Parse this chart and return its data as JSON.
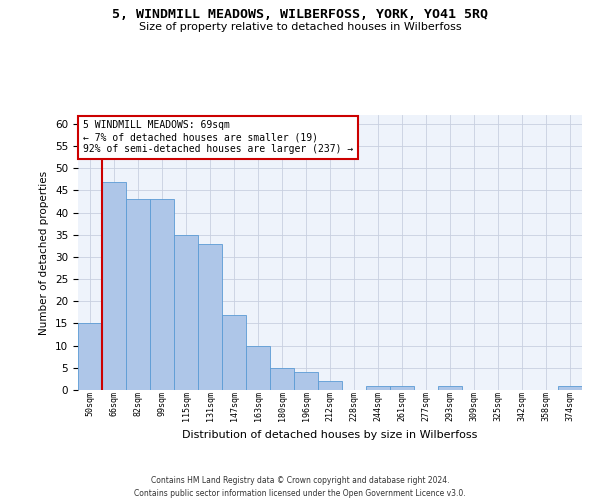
{
  "title": "5, WINDMILL MEADOWS, WILBERFOSS, YORK, YO41 5RQ",
  "subtitle": "Size of property relative to detached houses in Wilberfoss",
  "xlabel": "Distribution of detached houses by size in Wilberfoss",
  "ylabel": "Number of detached properties",
  "bar_labels": [
    "50sqm",
    "66sqm",
    "82sqm",
    "99sqm",
    "115sqm",
    "131sqm",
    "147sqm",
    "163sqm",
    "180sqm",
    "196sqm",
    "212sqm",
    "228sqm",
    "244sqm",
    "261sqm",
    "277sqm",
    "293sqm",
    "309sqm",
    "325sqm",
    "342sqm",
    "358sqm",
    "374sqm"
  ],
  "bar_values": [
    15,
    47,
    43,
    43,
    35,
    33,
    17,
    10,
    5,
    4,
    2,
    0,
    1,
    1,
    0,
    1,
    0,
    0,
    0,
    0,
    1
  ],
  "bar_color": "#aec6e8",
  "bar_edge_color": "#5b9bd5",
  "highlight_bar_index": 1,
  "highlight_color": "#cc0000",
  "ylim": [
    0,
    62
  ],
  "yticks": [
    0,
    5,
    10,
    15,
    20,
    25,
    30,
    35,
    40,
    45,
    50,
    55,
    60
  ],
  "annotation_text": "5 WINDMILL MEADOWS: 69sqm\n← 7% of detached houses are smaller (19)\n92% of semi-detached houses are larger (237) →",
  "annotation_box_color": "#ffffff",
  "annotation_box_edge": "#cc0000",
  "bg_color": "#eef3fb",
  "footer_line1": "Contains HM Land Registry data © Crown copyright and database right 2024.",
  "footer_line2": "Contains public sector information licensed under the Open Government Licence v3.0."
}
